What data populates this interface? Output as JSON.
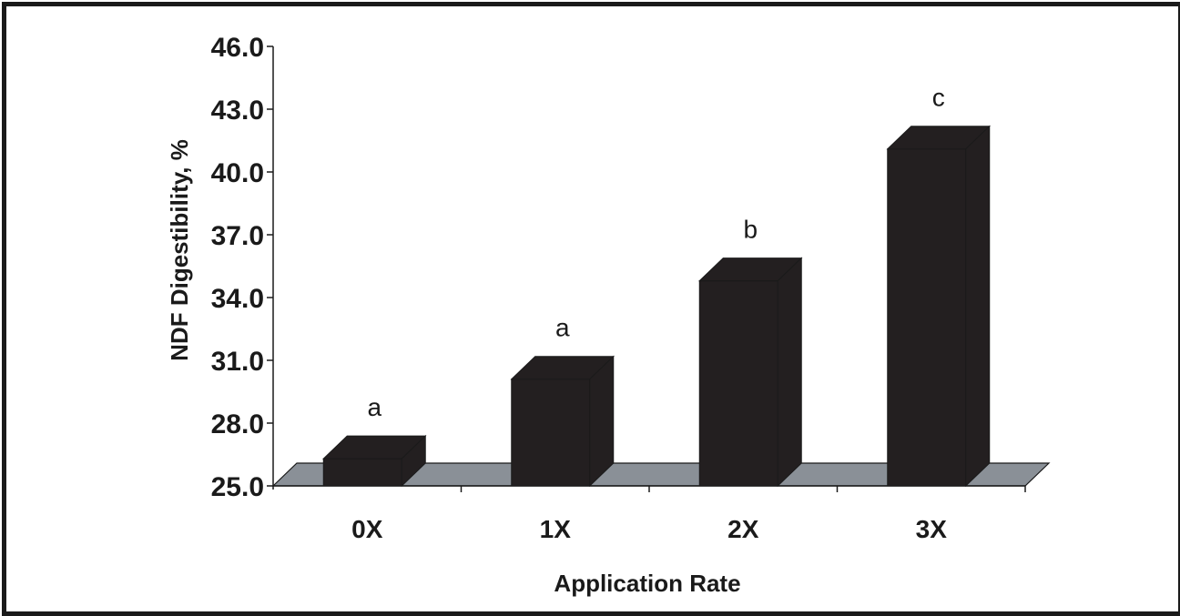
{
  "chart_data": {
    "type": "bar",
    "style": "3d",
    "categories": [
      "0X",
      "1X",
      "2X",
      "3X"
    ],
    "values": [
      26.3,
      30.1,
      34.8,
      41.1
    ],
    "data_labels": [
      "a",
      "a",
      "b",
      "c"
    ],
    "xlabel": "Application Rate",
    "ylabel": "NDF Digestibility, %",
    "ylim": [
      25.0,
      46.0
    ],
    "yticks": [
      "25.0",
      "28.0",
      "31.0",
      "34.0",
      "37.0",
      "40.0",
      "43.0",
      "46.0"
    ],
    "grid": false,
    "legend": "none"
  },
  "colors": {
    "bar": "#231f20",
    "floor": "#8a9097",
    "axis": "#1a1a1a",
    "frame": "#1a1a1a"
  }
}
